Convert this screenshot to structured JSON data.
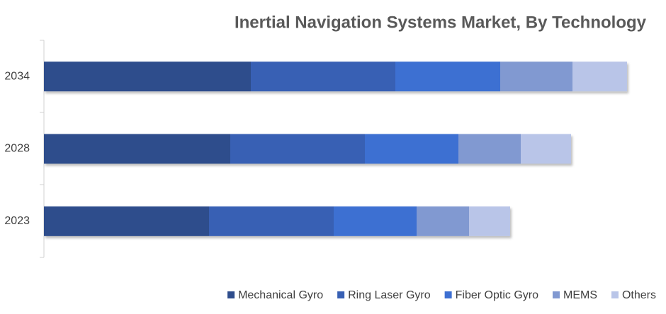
{
  "chart_data": {
    "type": "stacked-bar-horizontal",
    "title": "Inertial Navigation Systems Market, By Technology",
    "categories": [
      "2034",
      "2028",
      "2023"
    ],
    "series": [
      {
        "name": "Mechanical Gyro",
        "color": "#2e4d8c",
        "values": [
          292,
          263,
          233
        ]
      },
      {
        "name": "Ring Laser Gyro",
        "color": "#3860b4",
        "values": [
          204,
          190,
          176
        ]
      },
      {
        "name": "Fiber Optic Gyro",
        "color": "#3d6fd2",
        "values": [
          148,
          132,
          117
        ]
      },
      {
        "name": "MEMS",
        "color": "#8199d1",
        "values": [
          102,
          88,
          74
        ]
      },
      {
        "name": "Others",
        "color": "#b9c5e8",
        "values": [
          77,
          71,
          58
        ]
      }
    ],
    "xlim": [
      0,
      868
    ],
    "legend": "bottom-right"
  }
}
